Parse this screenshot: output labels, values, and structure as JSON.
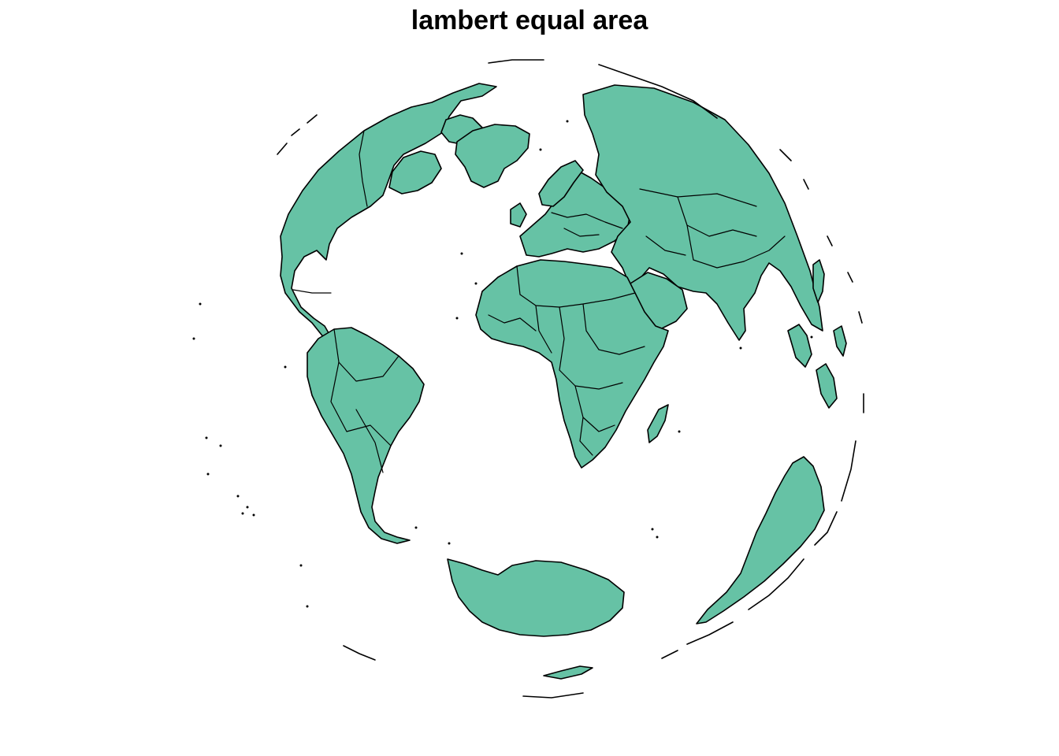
{
  "map": {
    "title": "lambert equal area",
    "land_fill": "#66C2A5",
    "outline_color": "#000000",
    "background": "#FFFFFF"
  }
}
